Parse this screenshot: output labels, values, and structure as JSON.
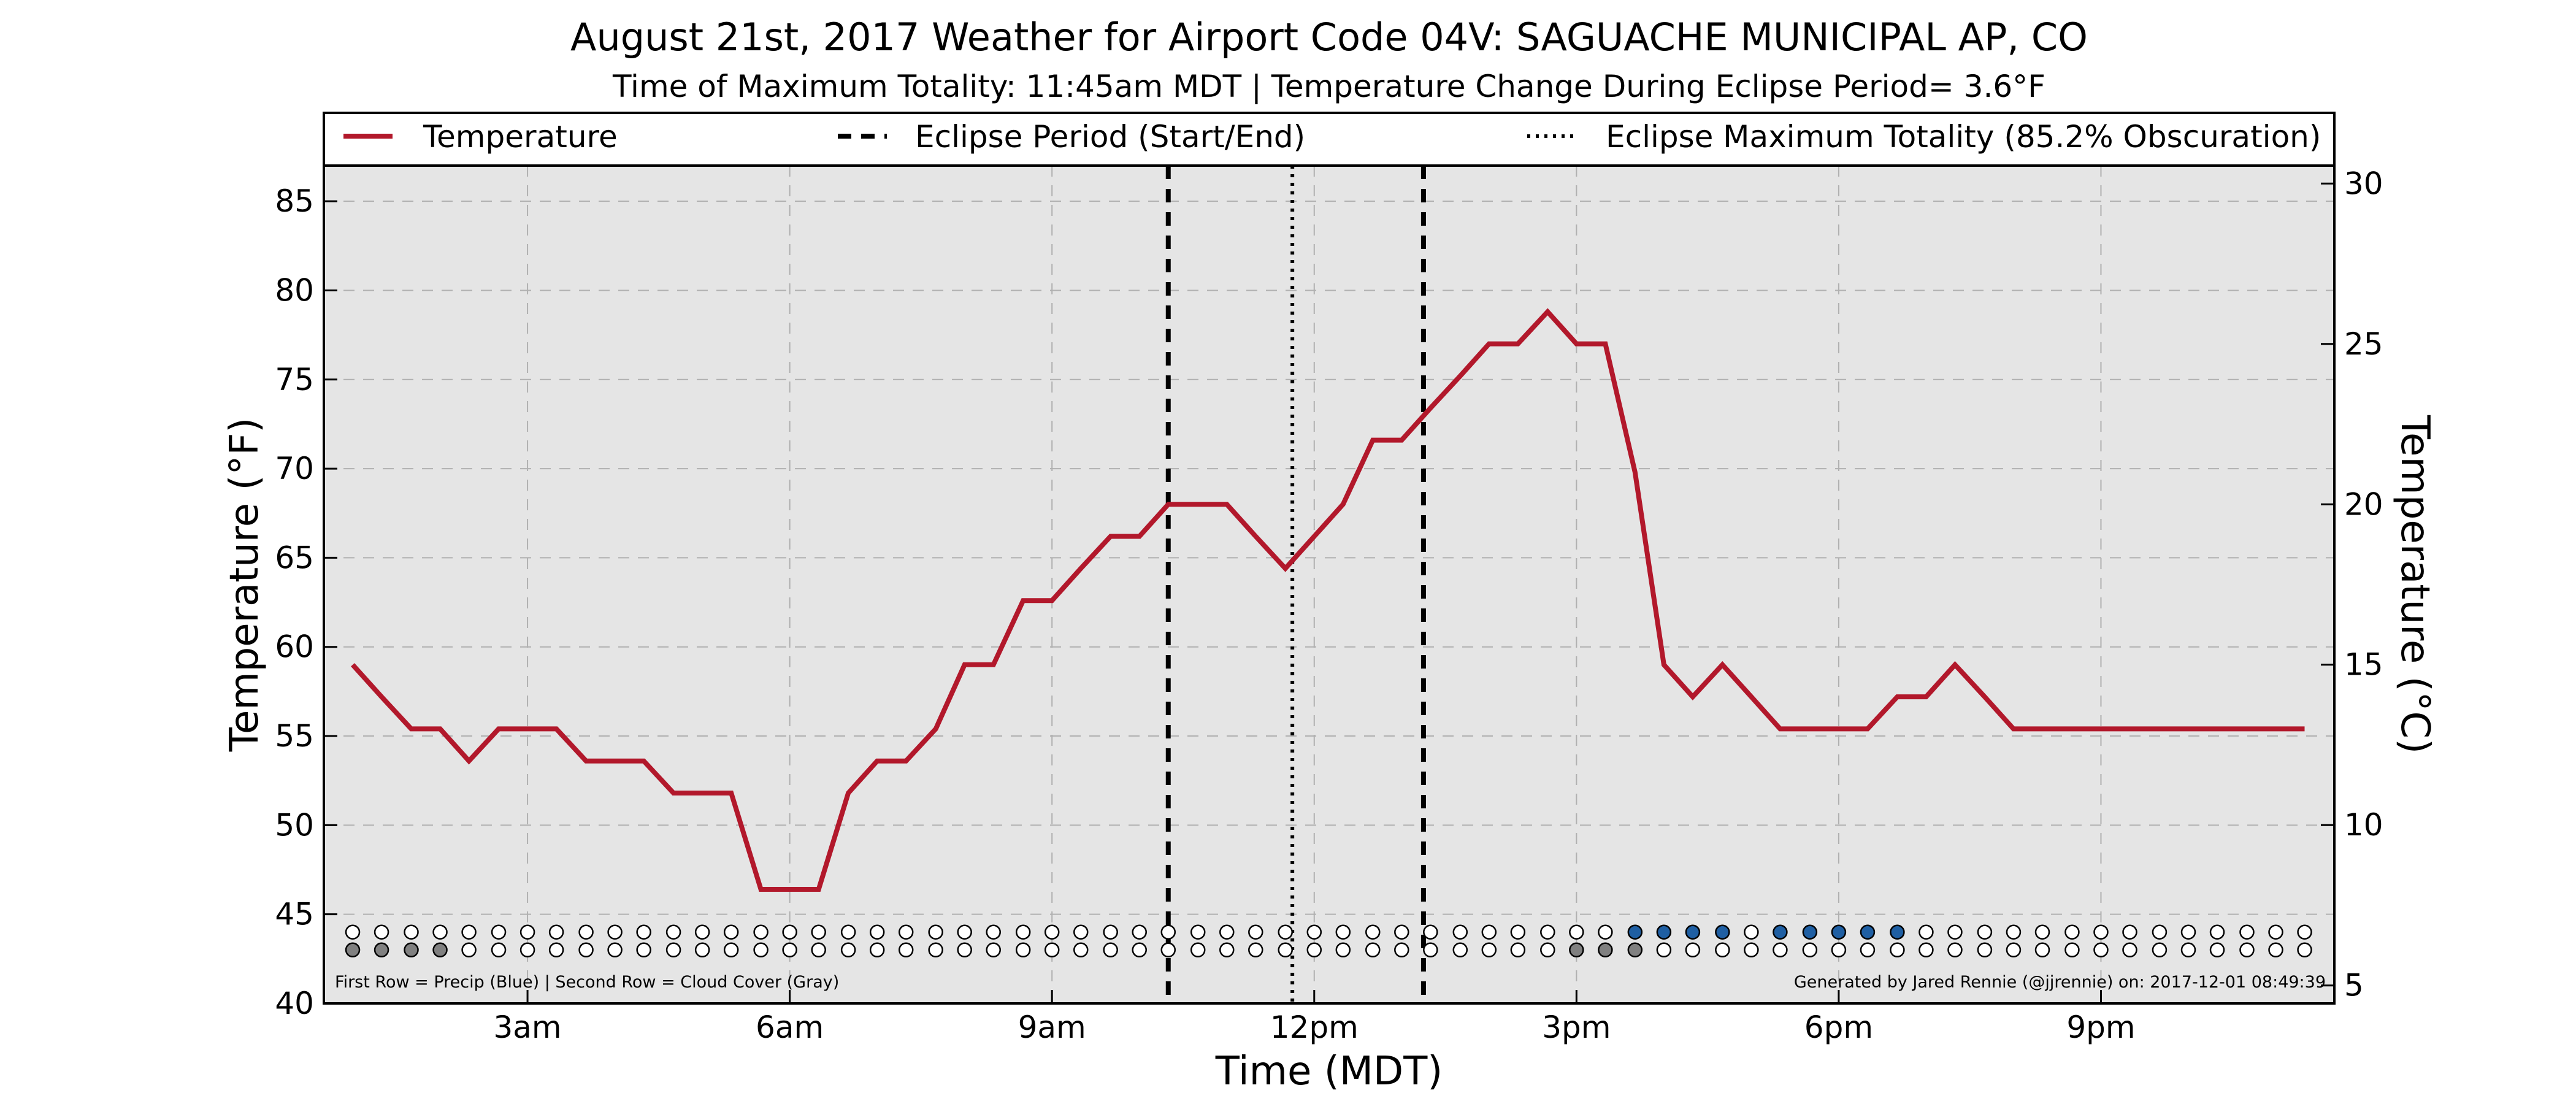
{
  "chart_data": {
    "type": "line",
    "title": "August 21st, 2017 Weather for Airport Code 04V: SAGUACHE MUNICIPAL AP, CO",
    "subtitle": "Time of Maximum Totality: 11:45am MDT | Temperature Change During Eclipse Period= 3.6°F",
    "xlabel": "Time (MDT)",
    "ylabel_left": "Temperature (°F)",
    "ylabel_right": "Temperature (°C)",
    "x_unit": "hours after midnight (MDT)",
    "xlim": [
      0.67,
      23.67
    ],
    "ylim": [
      40,
      87
    ],
    "ylim_right_c": [
      4.44,
      30.56
    ],
    "x_ticks": [
      {
        "value": 3,
        "label": "3am"
      },
      {
        "value": 6,
        "label": "6am"
      },
      {
        "value": 9,
        "label": "9am"
      },
      {
        "value": 12,
        "label": "12pm"
      },
      {
        "value": 15,
        "label": "3pm"
      },
      {
        "value": 18,
        "label": "6pm"
      },
      {
        "value": 21,
        "label": "9pm"
      }
    ],
    "y_ticks_left": [
      {
        "value": 40,
        "label": "40"
      },
      {
        "value": 45,
        "label": "45"
      },
      {
        "value": 50,
        "label": "50"
      },
      {
        "value": 55,
        "label": "55"
      },
      {
        "value": 60,
        "label": "60"
      },
      {
        "value": 65,
        "label": "65"
      },
      {
        "value": 70,
        "label": "70"
      },
      {
        "value": 75,
        "label": "75"
      },
      {
        "value": 80,
        "label": "80"
      },
      {
        "value": 85,
        "label": "85"
      }
    ],
    "y_ticks_right": [
      {
        "value": 5,
        "label": "5"
      },
      {
        "value": 10,
        "label": "10"
      },
      {
        "value": 15,
        "label": "15"
      },
      {
        "value": 20,
        "label": "20"
      },
      {
        "value": 25,
        "label": "25"
      },
      {
        "value": 30,
        "label": "30"
      }
    ],
    "grid": true,
    "legend_placement": "top",
    "legend": [
      {
        "label": "Temperature",
        "style": "solid",
        "color": "#b2182b"
      },
      {
        "label": "Eclipse Period (Start/End)",
        "style": "dashed",
        "color": "#000000"
      },
      {
        "label": "Eclipse Maximum Totality (85.2% Obscuration)",
        "style": "dotted",
        "color": "#000000"
      }
    ],
    "series": [
      {
        "name": "Temperature",
        "color": "#b2182b",
        "x": [
          1.0,
          1.33,
          1.67,
          2.0,
          2.33,
          2.67,
          3.0,
          3.33,
          3.67,
          4.0,
          4.33,
          4.67,
          5.0,
          5.33,
          5.67,
          6.0,
          6.33,
          6.67,
          7.0,
          7.33,
          7.67,
          8.0,
          8.33,
          8.67,
          9.0,
          9.33,
          9.67,
          10.0,
          10.33,
          10.67,
          11.0,
          11.33,
          11.67,
          12.0,
          12.33,
          12.67,
          13.0,
          13.33,
          13.67,
          14.0,
          14.33,
          14.67,
          15.0,
          15.33,
          15.67,
          16.0,
          16.33,
          16.67,
          17.0,
          17.33,
          17.67,
          18.0,
          18.33,
          18.67,
          19.0,
          19.33,
          19.67,
          20.0,
          20.33,
          20.67,
          21.0,
          21.33,
          21.67,
          22.0,
          22.33,
          22.67,
          23.0,
          23.33
        ],
        "y": [
          59.0,
          57.2,
          55.4,
          55.4,
          53.6,
          55.4,
          55.4,
          55.4,
          53.6,
          53.6,
          53.6,
          51.8,
          51.8,
          51.8,
          46.4,
          46.4,
          46.4,
          51.8,
          53.6,
          53.6,
          55.4,
          59.0,
          59.0,
          62.6,
          62.6,
          64.4,
          66.2,
          66.2,
          68.0,
          68.0,
          68.0,
          66.2,
          64.4,
          66.2,
          68.0,
          71.6,
          71.6,
          73.4,
          75.2,
          77.0,
          77.0,
          78.8,
          77.0,
          77.0,
          69.8,
          59.0,
          57.2,
          59.0,
          57.2,
          55.4,
          55.4,
          55.4,
          55.4,
          57.2,
          57.2,
          59.0,
          57.2,
          55.4,
          55.4,
          55.4,
          55.4,
          55.4,
          55.4,
          55.4,
          55.4,
          55.4,
          55.4,
          55.4
        ]
      }
    ],
    "eclipse_start": 10.33,
    "eclipse_end": 13.25,
    "eclipse_max": 11.75,
    "marker_rows": {
      "x": [
        1.0,
        1.33,
        1.67,
        2.0,
        2.33,
        2.67,
        3.0,
        3.33,
        3.67,
        4.0,
        4.33,
        4.67,
        5.0,
        5.33,
        5.67,
        6.0,
        6.33,
        6.67,
        7.0,
        7.33,
        7.67,
        8.0,
        8.33,
        8.67,
        9.0,
        9.33,
        9.67,
        10.0,
        10.33,
        10.67,
        11.0,
        11.33,
        11.67,
        12.0,
        12.33,
        12.67,
        13.0,
        13.33,
        13.67,
        14.0,
        14.33,
        14.67,
        15.0,
        15.33,
        15.67,
        16.0,
        16.33,
        16.67,
        17.0,
        17.33,
        17.67,
        18.0,
        18.33,
        18.67,
        19.0,
        19.33,
        19.67,
        20.0,
        20.33,
        20.67,
        21.0,
        21.33,
        21.67,
        22.0,
        22.33,
        22.67,
        23.0,
        23.33
      ],
      "precip_y": 44.0,
      "cloud_y": 43.0,
      "precip_color": "#1f5fa3",
      "cloud_color": "#808080",
      "precip_indices": [
        44,
        45,
        46,
        47,
        49,
        50,
        51,
        52,
        53
      ],
      "cloud_indices": [
        0,
        1,
        2,
        3,
        42,
        43,
        44
      ]
    },
    "note_left": "First Row = Precip (Blue) | Second Row = Cloud Cover (Gray)",
    "note_right": "Generated by Jared Rennie (@jjrennie) on: 2017-12-01 08:49:39",
    "colors": {
      "plot_bg": "#e5e5e5",
      "grid": "#b0b0b0",
      "line": "#b2182b"
    }
  }
}
